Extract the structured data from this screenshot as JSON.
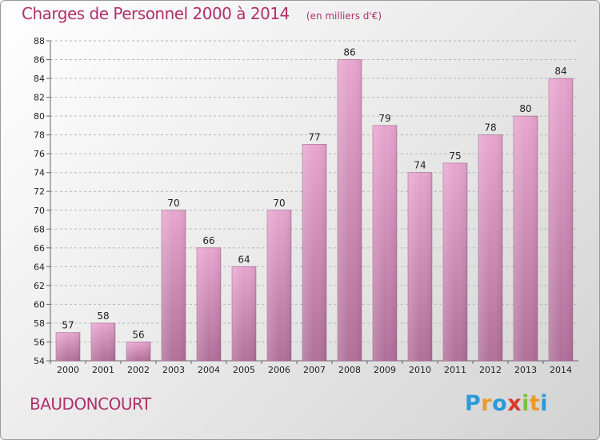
{
  "header": {
    "title": "Charges de Personnel 2000 à 2014",
    "subtitle": "(en milliers d'€)"
  },
  "footer": {
    "city": "BAUDONCOURT",
    "logo": {
      "text": "Proxiti",
      "letters": [
        {
          "char": "P",
          "color": "#2a9ad8"
        },
        {
          "char": "r",
          "color": "#e89a2a"
        },
        {
          "char": "o",
          "color": "#2a9ad8"
        },
        {
          "char": "x",
          "color": "#d93a2a"
        },
        {
          "char": "i",
          "color": "#7cc23a"
        },
        {
          "char": "t",
          "color": "#e89a2a"
        },
        {
          "char": "i",
          "color": "#2a9ad8"
        }
      ]
    }
  },
  "chart_data": {
    "type": "bar",
    "categories": [
      "2000",
      "2001",
      "2002",
      "2003",
      "2004",
      "2005",
      "2006",
      "2007",
      "2008",
      "2009",
      "2010",
      "2011",
      "2012",
      "2013",
      "2014"
    ],
    "values": [
      57,
      58,
      56,
      70,
      66,
      64,
      70,
      77,
      86,
      79,
      74,
      75,
      78,
      80,
      84
    ],
    "data_labels": [
      "57",
      "58",
      "56",
      "70",
      "66",
      "64",
      "70",
      "77",
      "86",
      "79",
      "74",
      "75",
      "78",
      "80",
      "84"
    ],
    "ylim": [
      54,
      88
    ],
    "yticks": [
      54,
      56,
      58,
      60,
      62,
      64,
      66,
      68,
      70,
      72,
      74,
      76,
      78,
      80,
      82,
      84,
      86,
      88
    ],
    "grid": true,
    "bar_color_top": "#e7a6cf",
    "bar_color_bottom": "#b0709a",
    "title_color": "#b0306a"
  }
}
